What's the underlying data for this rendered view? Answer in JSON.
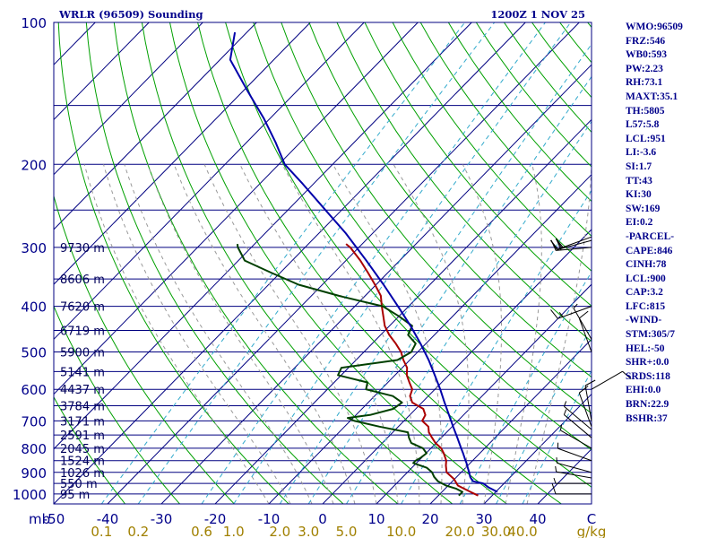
{
  "title": "WRLR (96509) Sounding",
  "valid_time": "1200Z  1 NOV 25",
  "colors": {
    "frame": "#000080",
    "isobar": "#000080",
    "isotherm": "#000080",
    "dry_adiabat": "#00a000",
    "moist_adiabat": "#999999",
    "mixing_ratio": "#33aacc",
    "temperature": "#aa0000",
    "dewpoint": "#004000",
    "parcel": "#0000aa",
    "wind_barb": "#000000",
    "text": "#00008b",
    "mixing_ratio_labels": "#a08000"
  },
  "indices": [
    "WMO:96509",
    "FRZ:546",
    "WB0:593",
    "PW:2.23",
    "RH:73.1",
    "MAXT:35.1",
    "TH:5805",
    "L57:5.8",
    "LCL:951",
    "LI:-3.6",
    "SI:1.7",
    "TT:43",
    "KI:30",
    "SW:169",
    "EI:0.2",
    "-PARCEL-",
    "CAPE:846",
    "CINH:78",
    "LCL:900",
    "CAP:3.2",
    "LFC:815",
    "-WIND-",
    "STM:305/7",
    "HEL:-50",
    "SHR+:0.0",
    "SRDS:118",
    "EHI:0.0",
    "BRN:22.9",
    "BSHR:37"
  ],
  "chart_data": {
    "type": "skew-t log-p",
    "pressure_unit": "mb",
    "temperature_unit": "°C",
    "mixing_ratio_unit": "g/kg",
    "pressure_axis": {
      "scale": "log",
      "range": [
        1050,
        100
      ],
      "ticks": [
        100,
        200,
        300,
        400,
        500,
        600,
        700,
        800,
        900,
        1000
      ],
      "isobars": [
        100,
        150,
        200,
        250,
        300,
        350,
        400,
        450,
        500,
        550,
        600,
        650,
        700,
        750,
        800,
        850,
        900,
        950,
        1000
      ]
    },
    "temperature_axis": {
      "skewed": true,
      "range": [
        -50,
        50
      ],
      "ticks": [
        -50,
        -40,
        -30,
        -20,
        -10,
        0,
        10,
        20,
        30,
        40
      ],
      "isotherms": [
        -150,
        -140,
        -130,
        -120,
        -110,
        -100,
        -90,
        -80,
        -70,
        -60,
        -50,
        -40,
        -30,
        -20,
        -10,
        0,
        10,
        20,
        30,
        40,
        50
      ]
    },
    "mixing_ratio_lines": [
      0.1,
      0.2,
      0.6,
      1.0,
      2.0,
      3.0,
      5.0,
      10.0,
      20.0,
      30.0,
      40.0
    ],
    "mixing_ratio_labels": [
      "0.1",
      "0.2",
      "0.6",
      "1.0",
      "2.0",
      "3.0",
      "5.0",
      "10.0",
      "20.0",
      "30.0",
      "40.0"
    ],
    "height_labels": [
      {
        "p": 300,
        "text": "9730 m"
      },
      {
        "p": 350,
        "text": "8606 m"
      },
      {
        "p": 400,
        "text": "7620 m"
      },
      {
        "p": 450,
        "text": "6719 m"
      },
      {
        "p": 500,
        "text": "5900 m"
      },
      {
        "p": 550,
        "text": "5141 m"
      },
      {
        "p": 600,
        "text": "4437 m"
      },
      {
        "p": 650,
        "text": "3784 m"
      },
      {
        "p": 700,
        "text": "3171 m"
      },
      {
        "p": 750,
        "text": "2591 m"
      },
      {
        "p": 800,
        "text": "2045 m"
      },
      {
        "p": 850,
        "text": "1524 m"
      },
      {
        "p": 900,
        "text": "1026 m"
      },
      {
        "p": 950,
        "text": "550 m"
      },
      {
        "p": 1000,
        "text": "95 m"
      }
    ],
    "series": [
      {
        "name": "temperature",
        "p": [
          1008,
          990,
          960,
          930,
          900,
          870,
          850,
          820,
          800,
          780,
          760,
          740,
          720,
          700,
          680,
          660,
          640,
          620,
          600,
          580,
          560,
          540,
          520,
          500,
          480,
          460,
          440,
          420,
          400,
          380,
          360,
          340,
          320,
          300,
          295
        ],
        "t": [
          27.4,
          25.3,
          21.8,
          19.9,
          17.3,
          15.9,
          15.1,
          13.3,
          11.9,
          9.9,
          8.3,
          6.7,
          5.6,
          3.4,
          2.9,
          1.4,
          -1.8,
          -3.4,
          -4.2,
          -6.0,
          -7.8,
          -9.1,
          -11.2,
          -13.1,
          -15.6,
          -18.4,
          -20.9,
          -22.9,
          -25.0,
          -27.1,
          -30.2,
          -33.6,
          -37.3,
          -41.6,
          -43.0
        ]
      },
      {
        "name": "dewpoint",
        "p": [
          1008,
          990,
          975,
          960,
          940,
          920,
          900,
          880,
          860,
          850,
          840,
          820,
          800,
          780,
          760,
          740,
          720,
          700,
          690,
          680,
          660,
          640,
          620,
          600,
          580,
          560,
          540,
          520,
          500,
          480,
          460,
          440,
          420,
          400,
          380,
          360,
          340,
          320,
          300,
          295
        ],
        "t": [
          23.8,
          23.8,
          22.1,
          19.6,
          17.3,
          15.8,
          14.6,
          12.8,
          9.4,
          9.4,
          9.8,
          10.1,
          8.5,
          5.4,
          4.0,
          2.8,
          -3.5,
          -9.2,
          -11.0,
          -7.4,
          -4.2,
          -3.7,
          -6.6,
          -12.8,
          -13.8,
          -20.6,
          -21.3,
          -12.3,
          -11.2,
          -11.9,
          -14.9,
          -15.8,
          -20.0,
          -24.8,
          -34.9,
          -44.4,
          -51.5,
          -58.8,
          -62.5,
          -63.2
        ]
      },
      {
        "name": "parcel",
        "p": [
          990,
          970,
          950,
          940,
          920,
          900,
          880,
          860,
          840,
          820,
          800,
          760,
          720,
          680,
          640,
          600,
          560,
          520,
          480,
          440,
          400,
          360,
          320,
          280,
          250,
          220,
          200,
          180,
          160,
          140,
          120,
          105
        ],
        "t": [
          30.3,
          28.0,
          26.1,
          23.8,
          22.5,
          21.5,
          20.4,
          19.3,
          18.1,
          16.9,
          15.6,
          13.0,
          10.2,
          7.3,
          4.2,
          1.0,
          -2.6,
          -6.5,
          -11.0,
          -16.1,
          -22.0,
          -28.6,
          -36.2,
          -45.0,
          -53.0,
          -62.0,
          -68.9,
          -74.5,
          -81.1,
          -89.1,
          -98.1,
          -102.2
        ]
      }
    ],
    "wind_barbs": [
      {
        "p": 1000,
        "dir": 270,
        "spd": 10
      },
      {
        "p": 950,
        "dir": 270,
        "spd": 5
      },
      {
        "p": 925,
        "dir": 280,
        "spd": 5
      },
      {
        "p": 900,
        "dir": 285,
        "spd": 5
      },
      {
        "p": 850,
        "dir": 290,
        "spd": 5
      },
      {
        "p": 800,
        "dir": 300,
        "spd": 5
      },
      {
        "p": 760,
        "dir": 310,
        "spd": 5
      },
      {
        "p": 730,
        "dir": 310,
        "spd": 5
      },
      {
        "p": 720,
        "dir": 340,
        "spd": 10
      },
      {
        "p": 700,
        "dir": 350,
        "spd": 10
      },
      {
        "p": 600,
        "dir": 60,
        "spd": 10
      },
      {
        "p": 500,
        "dir": 340,
        "spd": 10
      },
      {
        "p": 470,
        "dir": 330,
        "spd": 5
      },
      {
        "p": 400,
        "dir": 250,
        "spd": 15
      },
      {
        "p": 300,
        "dir": 265,
        "spd": 20
      },
      {
        "p": 290,
        "dir": 255,
        "spd": 20
      },
      {
        "p": 285,
        "dir": 250,
        "spd": 20
      }
    ]
  }
}
